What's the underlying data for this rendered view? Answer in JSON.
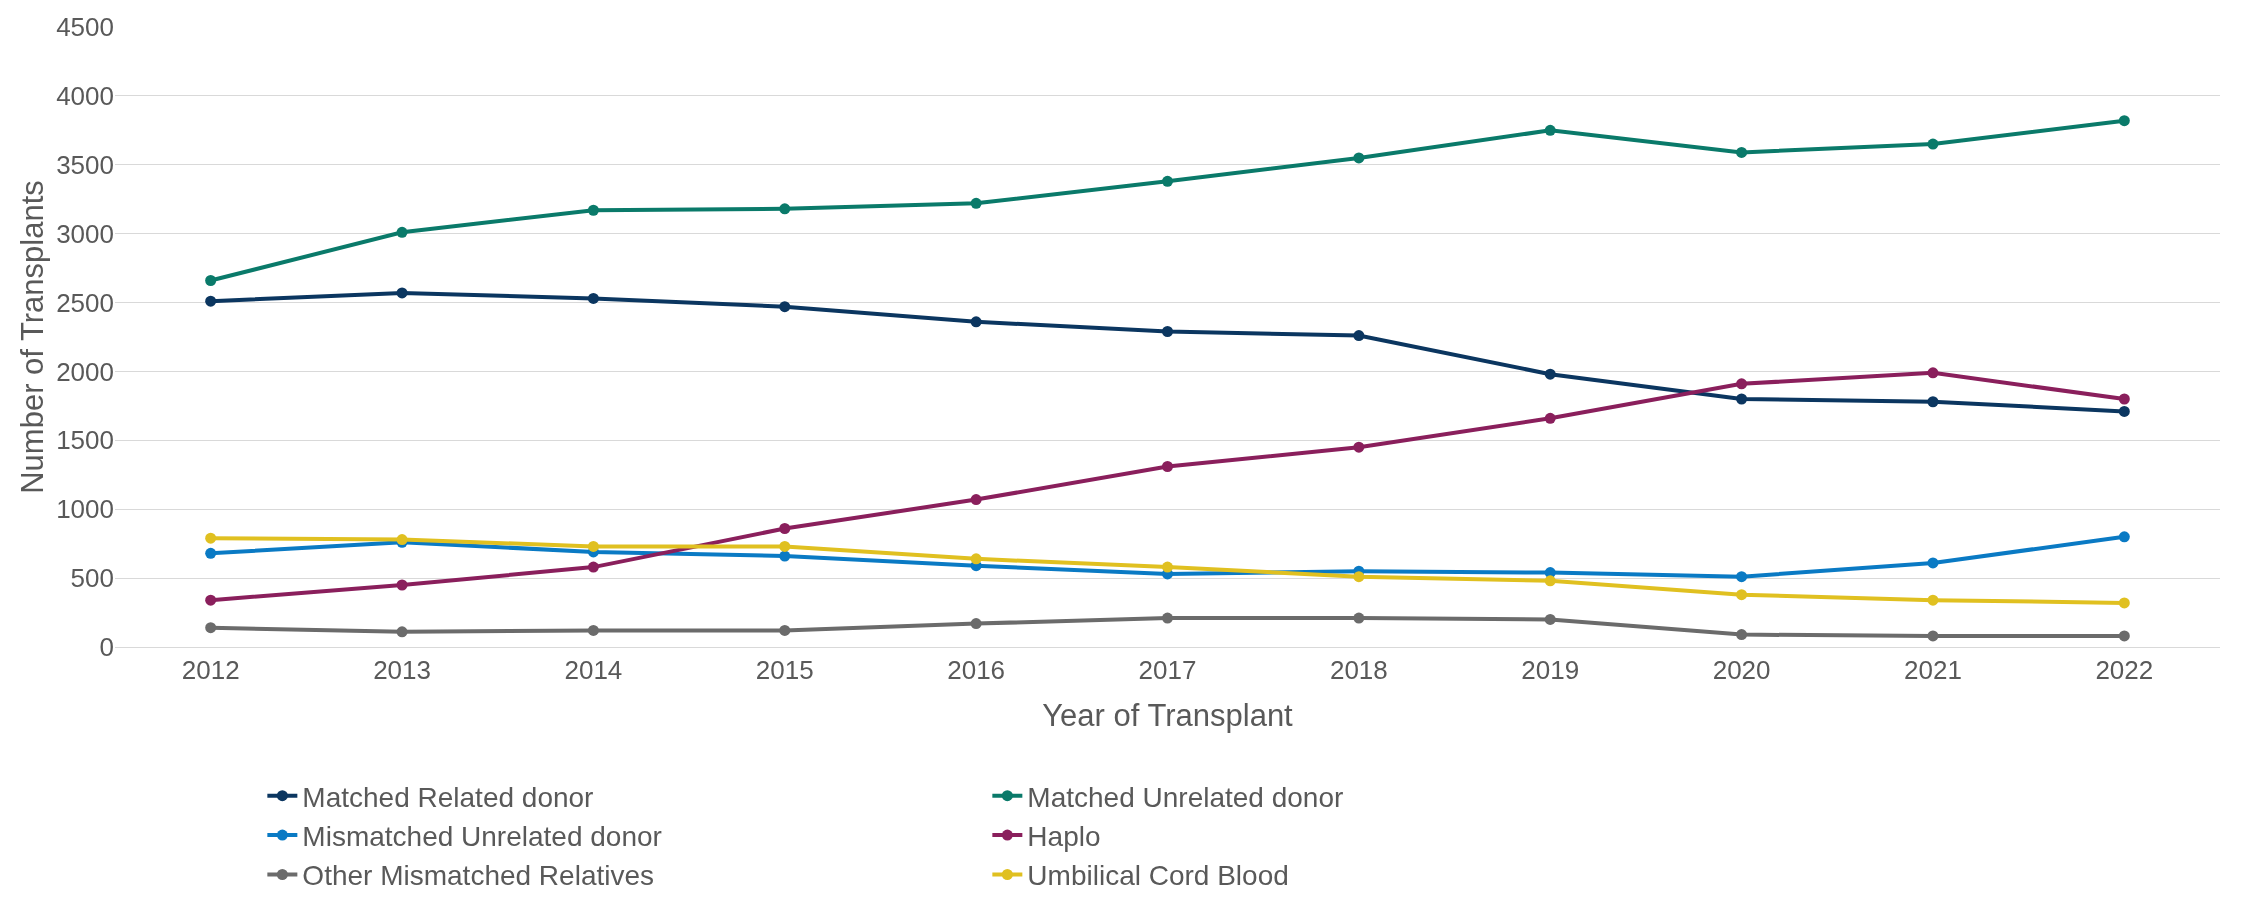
{
  "chart_data": {
    "type": "line",
    "xlabel": "Year of Transplant",
    "ylabel": "Number of Transplants",
    "categories": [
      "2012",
      "2013",
      "2014",
      "2015",
      "2016",
      "2017",
      "2018",
      "2019",
      "2020",
      "2021",
      "2022"
    ],
    "series": [
      {
        "name": "Matched Related donor",
        "color": "#0b3660",
        "values": [
          2510,
          2570,
          2530,
          2470,
          2360,
          2290,
          2260,
          1980,
          1800,
          1780,
          1710
        ]
      },
      {
        "name": "Matched Unrelated donor",
        "color": "#0a7a6a",
        "values": [
          2660,
          3010,
          3170,
          3180,
          3220,
          3380,
          3550,
          3750,
          3590,
          3650,
          3820
        ]
      },
      {
        "name": "Mismatched Unrelated donor",
        "color": "#0a7ac4",
        "values": [
          680,
          760,
          690,
          660,
          590,
          530,
          550,
          540,
          510,
          610,
          800
        ]
      },
      {
        "name": "Haplo",
        "color": "#8a1f5c",
        "values": [
          340,
          450,
          580,
          860,
          1070,
          1310,
          1450,
          1660,
          1910,
          1990,
          1800
        ]
      },
      {
        "name": "Other Mismatched Relatives",
        "color": "#6b6b6b",
        "values": [
          140,
          110,
          120,
          120,
          170,
          210,
          210,
          200,
          90,
          80,
          80
        ]
      },
      {
        "name": "Umbilical Cord Blood",
        "color": "#e0c020",
        "values": [
          790,
          780,
          730,
          730,
          640,
          580,
          510,
          480,
          380,
          340,
          320
        ]
      }
    ],
    "ylim": [
      0,
      4500
    ],
    "yticks": [
      0,
      500,
      1000,
      1500,
      2000,
      2500,
      3000,
      3500,
      4000,
      4500
    ],
    "grid": "y",
    "legend": "bottom",
    "marker": "circle",
    "line_style": "solid"
  }
}
